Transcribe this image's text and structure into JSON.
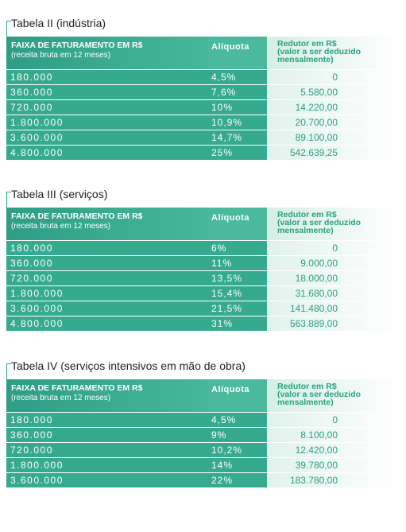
{
  "tables": [
    {
      "title": "Tabela II (indústria)",
      "header": {
        "range": "FAIXA DE FATURAMENTO EM R$",
        "range_note": "(receita bruta em 12 meses)",
        "rate": "Alíquota",
        "reducer": "Redutor em R$",
        "reducer_note": "(valor a ser deduzido mensalmente)"
      },
      "rows": [
        [
          "180.000",
          "4,5%",
          "0"
        ],
        [
          "360.000",
          "7,6%",
          "5.580,00"
        ],
        [
          "720.000",
          "10%",
          "14.220,00"
        ],
        [
          "1.800.000",
          "10,9%",
          "20.700,00"
        ],
        [
          "3.600.000",
          "14,7%",
          "89.100,00"
        ],
        [
          "4.800.000",
          "25%",
          "542.639,25"
        ]
      ]
    },
    {
      "title": "Tabela III (serviços)",
      "header": {
        "range": "FAIXA DE FATURAMENTO EM R$",
        "range_note": "(receita bruta em 12 meses)",
        "rate": "Alíquota",
        "reducer": "Redutor em R$",
        "reducer_note": "(valor a ser deduzido mensalmente)"
      },
      "rows": [
        [
          "180.000",
          "6%",
          "0"
        ],
        [
          "360.000",
          "11%",
          "9.000,00"
        ],
        [
          "720.000",
          "13,5%",
          "18.000,00"
        ],
        [
          "1.800.000",
          "15,4%",
          "31.680,00"
        ],
        [
          "3.600.000",
          "21,5%",
          "141.480,00"
        ],
        [
          "4.800.000",
          "31%",
          "563.889,00"
        ]
      ]
    },
    {
      "title": "Tabela IV (serviços intensivos em mão de obra)",
      "header": {
        "range": "FAIXA DE FATURAMENTO EM R$",
        "range_note": "(receita bruta em 12 meses)",
        "rate": "Alíquota",
        "reducer": "Redutor em R$",
        "reducer_note": "(valor a ser deduzido mensalmente)"
      },
      "rows": [
        [
          "180.000",
          "4,5%",
          "0"
        ],
        [
          "360.000",
          "9%",
          "8.100,00"
        ],
        [
          "720.000",
          "10,2%",
          "12.420,00"
        ],
        [
          "1.800.000",
          "14%",
          "39.780,00"
        ],
        [
          "3.600.000",
          "22%",
          "183.780,00"
        ]
      ]
    }
  ]
}
